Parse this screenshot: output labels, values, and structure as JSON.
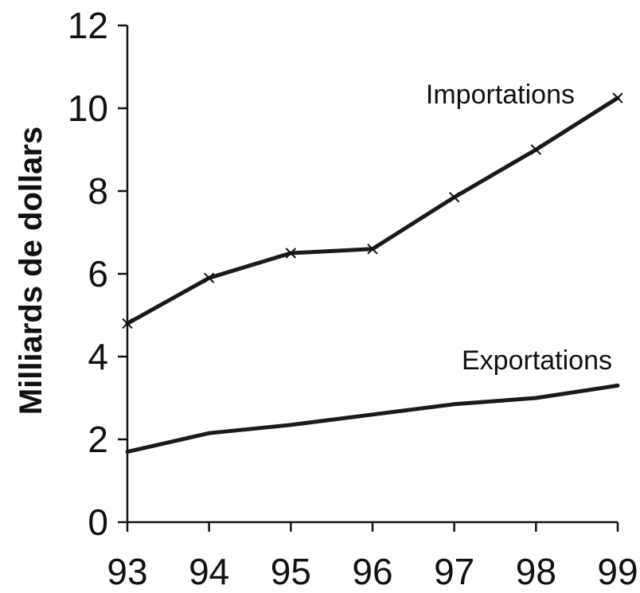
{
  "chart_data": {
    "type": "line",
    "title": "",
    "xlabel": "",
    "ylabel": "Milliards de dollars",
    "categories": [
      "93",
      "94",
      "95",
      "96",
      "97",
      "98",
      "99"
    ],
    "y_ticks": [
      "0",
      "2",
      "4",
      "6",
      "8",
      "10",
      "12"
    ],
    "ylim": [
      0,
      12
    ],
    "grid": false,
    "legend": "none",
    "series": [
      {
        "name": "Importations",
        "values": [
          4.8,
          5.9,
          6.5,
          6.6,
          7.85,
          9.0,
          10.25
        ],
        "marker": "x",
        "color": "#1a1a1a"
      },
      {
        "name": "Exportations",
        "values": [
          1.7,
          2.15,
          2.35,
          2.6,
          2.85,
          3.0,
          3.3
        ],
        "marker": "none",
        "color": "#1a1a1a"
      }
    ]
  }
}
